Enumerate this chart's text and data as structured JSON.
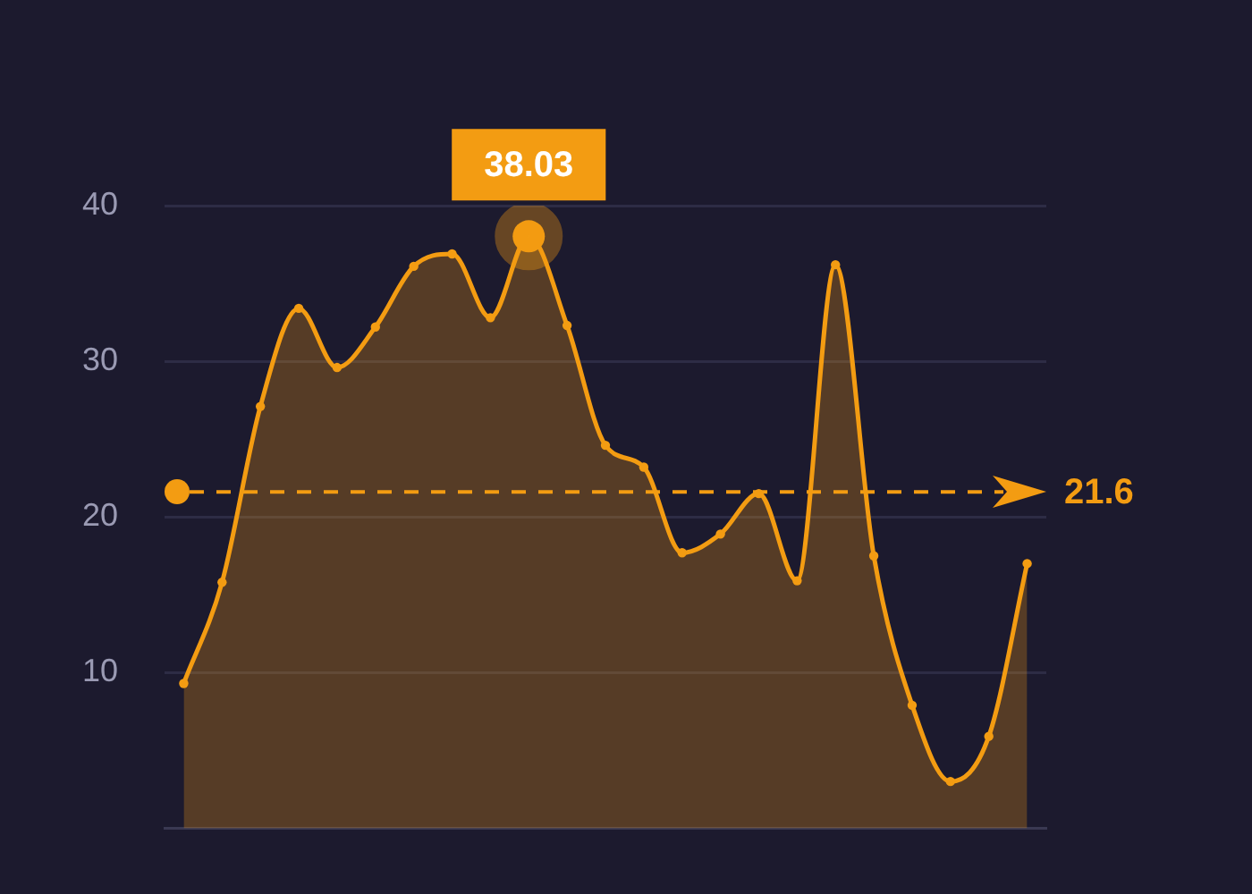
{
  "chart_data": {
    "type": "area",
    "categories": [
      null,
      null,
      null,
      null,
      null,
      null,
      null,
      null,
      null,
      null,
      null,
      null,
      null,
      null,
      null,
      null,
      null,
      null,
      null,
      null,
      null,
      null,
      null
    ],
    "values": [
      9.3,
      15.8,
      27.1,
      33.4,
      29.6,
      32.2,
      36.1,
      36.9,
      32.8,
      38.03,
      32.3,
      24.6,
      23.2,
      17.7,
      18.9,
      21.5,
      15.9,
      36.2,
      17.5,
      7.9,
      3,
      5.9,
      17.0
    ],
    "value_labels": [
      null,
      null,
      null,
      null,
      null,
      null,
      null,
      null,
      null,
      "38.03",
      null,
      null,
      null,
      null,
      null,
      null,
      null,
      null,
      null,
      null,
      null,
      null,
      null
    ],
    "color": "#f39c12",
    "ylim": [
      0,
      40
    ],
    "yticks": [
      10,
      20,
      30,
      40
    ],
    "tick_labels": "y",
    "grid": "y",
    "marker": "circle",
    "ref_lines": [
      {
        "axis": "y",
        "value": 21.6,
        "label": "21.6",
        "color": "#f39c12",
        "line_style": "dashed"
      }
    ]
  }
}
